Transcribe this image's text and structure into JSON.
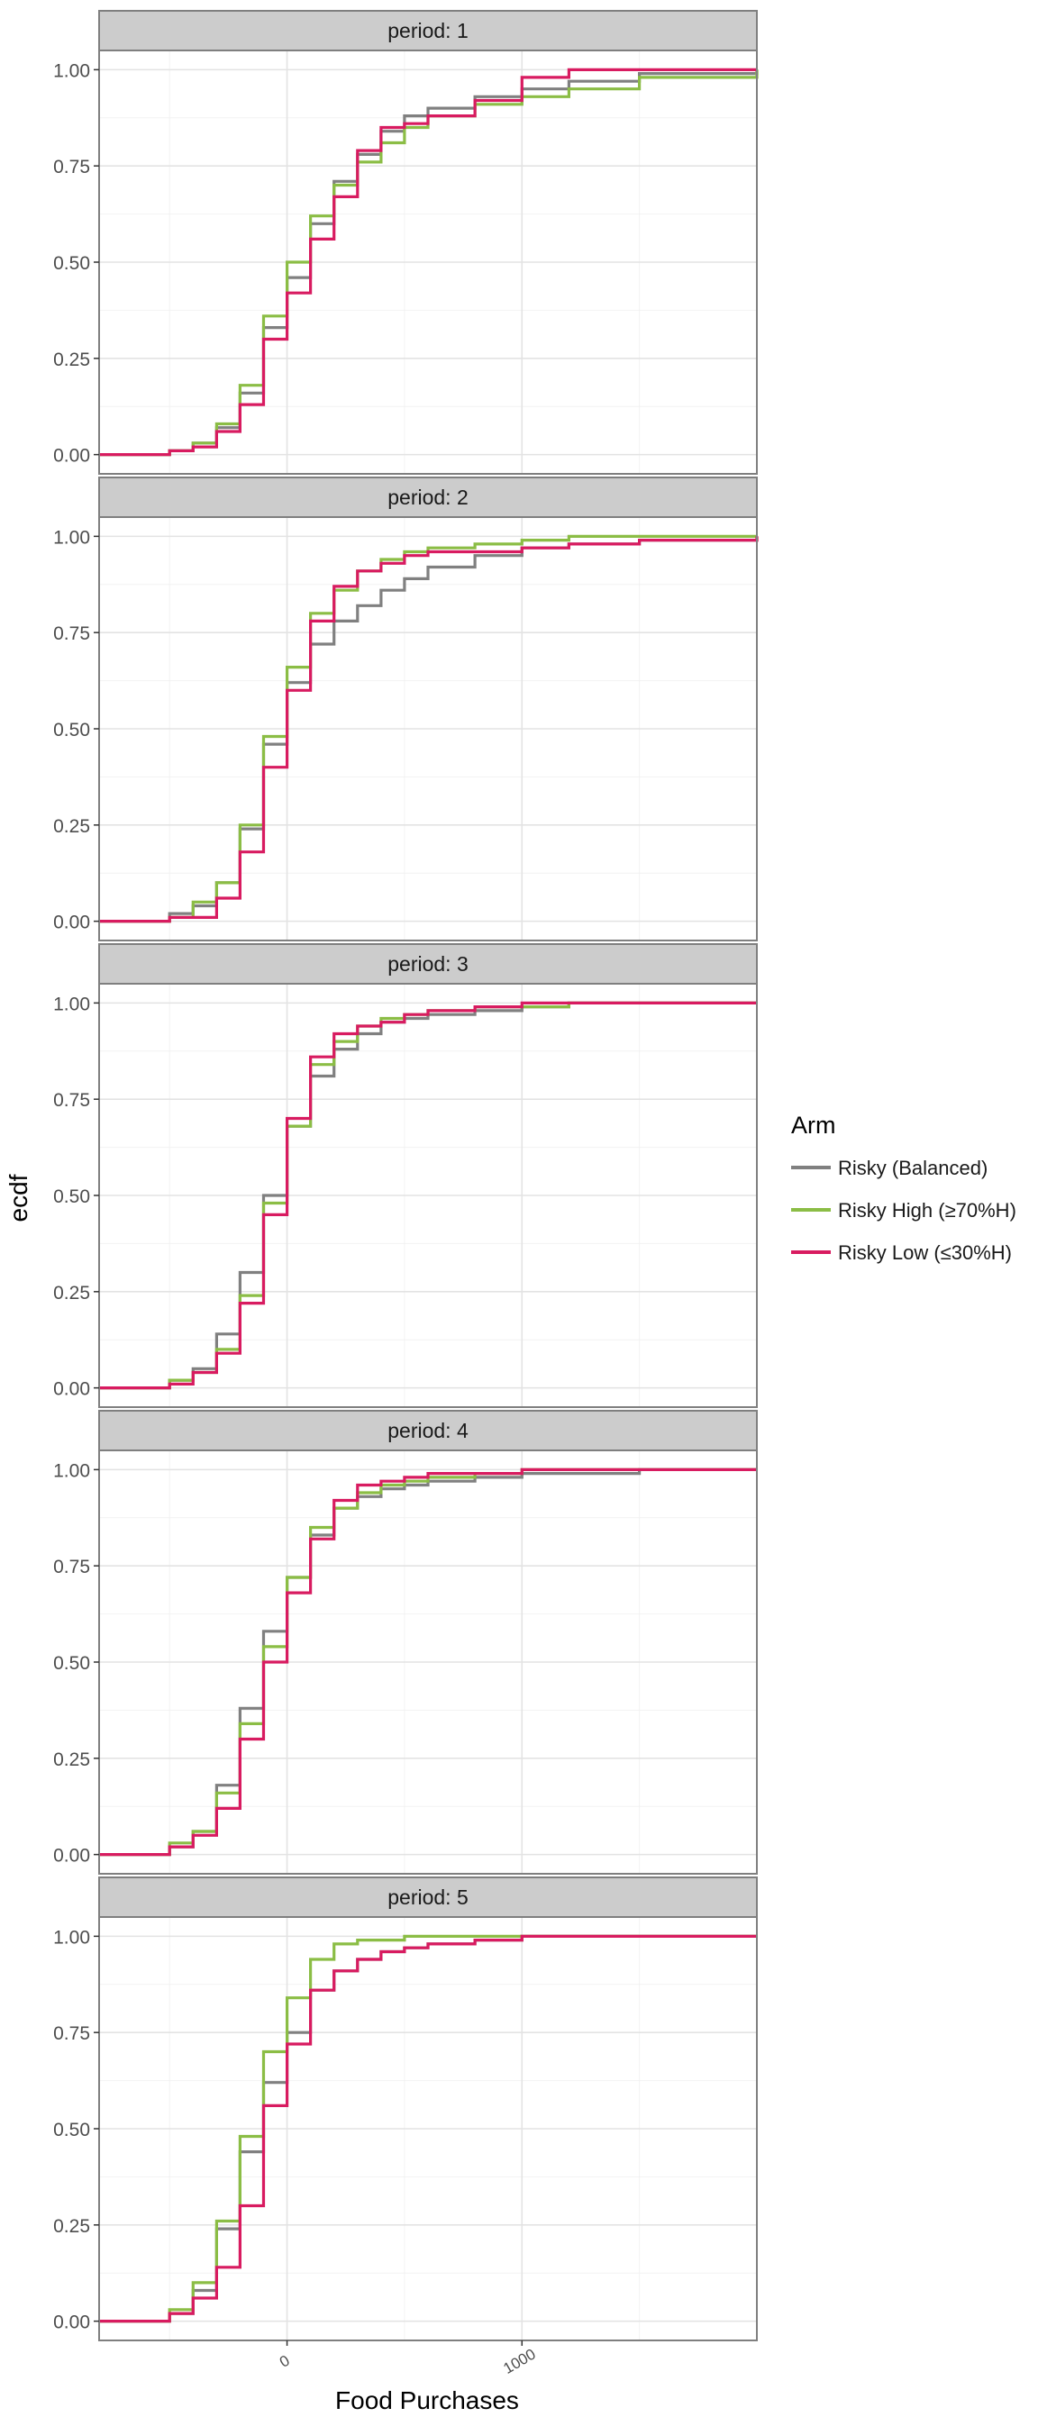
{
  "chart_data": {
    "type": "line",
    "subtype": "ecdf step, faceted",
    "xlabel": "Food Purchases",
    "ylabel": "ecdf",
    "xlim": [
      -800,
      2000
    ],
    "ylim": [
      -0.05,
      1.05
    ],
    "x_ticks": [
      0,
      1000
    ],
    "x_tick_labels": [
      "0",
      "1000"
    ],
    "y_ticks": [
      0,
      0.25,
      0.5,
      0.75,
      1
    ],
    "y_tick_labels": [
      "0.00",
      "0.25",
      "0.50",
      "0.75",
      "1.00"
    ],
    "grid": true,
    "legend": {
      "title": "Arm",
      "position": "right",
      "entries": [
        "Risky (Balanced)",
        "Risky High (≥70%H)",
        "Risky Low (≤30%H)"
      ]
    },
    "colors": {
      "Risky (Balanced)": "#808080",
      "Risky High (≥70%H)": "#8bbd45",
      "Risky Low (≤30%H)": "#d81b60"
    },
    "facets": [
      {
        "label": "period: 1",
        "series": [
          {
            "name": "Risky (Balanced)",
            "x": [
              -800,
              -500,
              -400,
              -300,
              -200,
              -100,
              0,
              100,
              200,
              300,
              400,
              500,
              600,
              800,
              1000,
              1200,
              1500,
              2000
            ],
            "y": [
              0,
              0.01,
              0.03,
              0.07,
              0.16,
              0.33,
              0.46,
              0.6,
              0.71,
              0.78,
              0.84,
              0.88,
              0.9,
              0.93,
              0.95,
              0.97,
              0.99,
              1
            ]
          },
          {
            "name": "Risky High (≥70%H)",
            "x": [
              -800,
              -500,
              -400,
              -300,
              -200,
              -100,
              0,
              100,
              200,
              300,
              400,
              500,
              600,
              800,
              1000,
              1200,
              1500,
              2000
            ],
            "y": [
              0,
              0.01,
              0.03,
              0.08,
              0.18,
              0.36,
              0.5,
              0.62,
              0.7,
              0.76,
              0.81,
              0.85,
              0.88,
              0.91,
              0.93,
              0.95,
              0.98,
              1
            ]
          },
          {
            "name": "Risky Low (≤30%H)",
            "x": [
              -800,
              -500,
              -400,
              -300,
              -200,
              -100,
              0,
              100,
              200,
              300,
              400,
              500,
              600,
              800,
              1000,
              1200,
              1500,
              2000
            ],
            "y": [
              0,
              0.01,
              0.02,
              0.06,
              0.13,
              0.3,
              0.42,
              0.56,
              0.67,
              0.79,
              0.85,
              0.86,
              0.88,
              0.92,
              0.98,
              1,
              1,
              1
            ]
          }
        ]
      },
      {
        "label": "period: 2",
        "series": [
          {
            "name": "Risky (Balanced)",
            "x": [
              -800,
              -500,
              -400,
              -300,
              -200,
              -100,
              0,
              100,
              200,
              300,
              400,
              500,
              600,
              800,
              1000,
              1200,
              1500,
              2000
            ],
            "y": [
              0,
              0.02,
              0.04,
              0.1,
              0.24,
              0.46,
              0.62,
              0.72,
              0.78,
              0.82,
              0.86,
              0.89,
              0.92,
              0.95,
              0.97,
              0.98,
              0.99,
              1
            ]
          },
          {
            "name": "Risky High (≥70%H)",
            "x": [
              -800,
              -500,
              -400,
              -300,
              -200,
              -100,
              0,
              100,
              200,
              300,
              400,
              500,
              600,
              800,
              1000,
              1200,
              1500,
              2000
            ],
            "y": [
              0,
              0.01,
              0.05,
              0.1,
              0.25,
              0.48,
              0.66,
              0.8,
              0.86,
              0.91,
              0.94,
              0.96,
              0.97,
              0.98,
              0.99,
              1,
              1,
              1
            ]
          },
          {
            "name": "Risky Low (≤30%H)",
            "x": [
              -800,
              -500,
              -400,
              -300,
              -200,
              -100,
              0,
              100,
              200,
              300,
              400,
              500,
              600,
              800,
              1000,
              1200,
              1500,
              2000
            ],
            "y": [
              0,
              0.01,
              0.01,
              0.06,
              0.18,
              0.4,
              0.6,
              0.78,
              0.87,
              0.91,
              0.93,
              0.95,
              0.96,
              0.96,
              0.97,
              0.98,
              0.99,
              1
            ]
          }
        ]
      },
      {
        "label": "period: 3",
        "series": [
          {
            "name": "Risky (Balanced)",
            "x": [
              -800,
              -500,
              -400,
              -300,
              -200,
              -100,
              0,
              100,
              200,
              300,
              400,
              500,
              600,
              800,
              1000,
              1200,
              1500,
              2000
            ],
            "y": [
              0,
              0.02,
              0.05,
              0.14,
              0.3,
              0.5,
              0.68,
              0.81,
              0.88,
              0.92,
              0.95,
              0.96,
              0.97,
              0.98,
              0.99,
              1,
              1,
              1
            ]
          },
          {
            "name": "Risky High (≥70%H)",
            "x": [
              -800,
              -500,
              -400,
              -300,
              -200,
              -100,
              0,
              100,
              200,
              300,
              400,
              500,
              600,
              800,
              1000,
              1200,
              1500,
              2000
            ],
            "y": [
              0,
              0.02,
              0.04,
              0.1,
              0.24,
              0.48,
              0.68,
              0.84,
              0.9,
              0.94,
              0.96,
              0.97,
              0.98,
              0.99,
              0.99,
              1,
              1,
              1
            ]
          },
          {
            "name": "Risky Low (≤30%H)",
            "x": [
              -800,
              -500,
              -400,
              -300,
              -200,
              -100,
              0,
              100,
              200,
              300,
              400,
              500,
              600,
              800,
              1000,
              1200,
              1500,
              2000
            ],
            "y": [
              0,
              0.01,
              0.04,
              0.09,
              0.22,
              0.45,
              0.7,
              0.86,
              0.92,
              0.94,
              0.95,
              0.97,
              0.98,
              0.99,
              1,
              1,
              1,
              1
            ]
          }
        ]
      },
      {
        "label": "period: 4",
        "series": [
          {
            "name": "Risky (Balanced)",
            "x": [
              -800,
              -500,
              -400,
              -300,
              -200,
              -100,
              0,
              100,
              200,
              300,
              400,
              500,
              600,
              800,
              1000,
              1200,
              1500,
              2000
            ],
            "y": [
              0,
              0.02,
              0.06,
              0.18,
              0.38,
              0.58,
              0.72,
              0.83,
              0.9,
              0.93,
              0.95,
              0.96,
              0.97,
              0.98,
              0.99,
              0.99,
              1,
              1
            ]
          },
          {
            "name": "Risky High (≥70%H)",
            "x": [
              -800,
              -500,
              -400,
              -300,
              -200,
              -100,
              0,
              100,
              200,
              300,
              400,
              500,
              600,
              800,
              1000,
              1200,
              1500,
              2000
            ],
            "y": [
              0,
              0.03,
              0.06,
              0.16,
              0.34,
              0.54,
              0.72,
              0.85,
              0.9,
              0.94,
              0.96,
              0.97,
              0.98,
              0.99,
              1,
              1,
              1,
              1
            ]
          },
          {
            "name": "Risky Low (≤30%H)",
            "x": [
              -800,
              -500,
              -400,
              -300,
              -200,
              -100,
              0,
              100,
              200,
              300,
              400,
              500,
              600,
              800,
              1000,
              1200,
              1500,
              2000
            ],
            "y": [
              0,
              0.02,
              0.05,
              0.12,
              0.3,
              0.5,
              0.68,
              0.82,
              0.92,
              0.96,
              0.97,
              0.98,
              0.99,
              0.99,
              1,
              1,
              1,
              1
            ]
          }
        ]
      },
      {
        "label": "period: 5",
        "series": [
          {
            "name": "Risky (Balanced)",
            "x": [
              -800,
              -500,
              -400,
              -300,
              -200,
              -100,
              0,
              100,
              200,
              300,
              400,
              500,
              600,
              800,
              1000,
              1200,
              1500,
              2000
            ],
            "y": [
              0,
              0.02,
              0.08,
              0.24,
              0.44,
              0.62,
              0.75,
              0.86,
              0.91,
              0.94,
              0.96,
              0.97,
              0.98,
              0.99,
              1,
              1,
              1,
              1
            ]
          },
          {
            "name": "Risky High (≥70%H)",
            "x": [
              -800,
              -500,
              -400,
              -300,
              -200,
              -100,
              0,
              100,
              200,
              300,
              400,
              500,
              600,
              800,
              1000,
              1200,
              1500,
              2000
            ],
            "y": [
              0,
              0.03,
              0.1,
              0.26,
              0.48,
              0.7,
              0.84,
              0.94,
              0.98,
              0.99,
              0.99,
              1,
              1,
              1,
              1,
              1,
              1,
              1
            ]
          },
          {
            "name": "Risky Low (≤30%H)",
            "x": [
              -800,
              -500,
              -400,
              -300,
              -200,
              -100,
              0,
              100,
              200,
              300,
              400,
              500,
              600,
              800,
              1000,
              1200,
              1500,
              2000
            ],
            "y": [
              0,
              0.02,
              0.06,
              0.14,
              0.3,
              0.56,
              0.72,
              0.86,
              0.91,
              0.94,
              0.96,
              0.97,
              0.98,
              0.99,
              1,
              1,
              1,
              1
            ]
          }
        ]
      }
    ]
  }
}
